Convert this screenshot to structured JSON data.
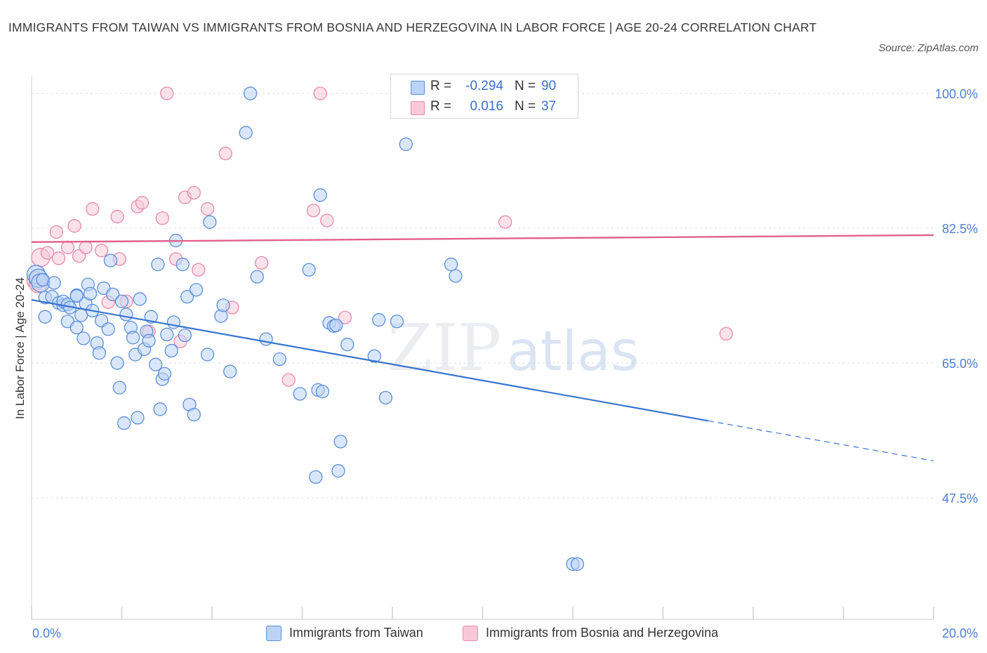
{
  "title": "IMMIGRANTS FROM TAIWAN VS IMMIGRANTS FROM BOSNIA AND HERZEGOVINA IN LABOR FORCE | AGE 20-24 CORRELATION CHART",
  "source": "Source: ZipAtlas.com",
  "watermark": {
    "part1": "ZIP",
    "part2": "atlas"
  },
  "colors": {
    "taiwan_fill": "#bcd3f5",
    "taiwan_stroke": "#5b8fd9",
    "taiwan_line": "#3674d0",
    "bosnia_fill": "#f8c9d8",
    "bosnia_stroke": "#e88aa8",
    "bosnia_line": "#e0628c",
    "tick_text": "#4a7fd4",
    "grid": "#dddddd"
  },
  "legend_top": [
    {
      "r_label": "R =",
      "r_value": "-0.294",
      "n_label": "N =",
      "n_value": "90"
    },
    {
      "r_label": "R =",
      "r_value": "0.016",
      "n_label": "N =",
      "n_value": "37"
    }
  ],
  "legend_bottom": [
    {
      "label": "Immigrants from Taiwan"
    },
    {
      "label": "Immigrants from Bosnia and Herzegovina"
    }
  ],
  "chart_data": {
    "type": "scatter",
    "ylabel": "In Labor Force | Age 20-24",
    "xlim": [
      0,
      20
    ],
    "ylim": [
      30,
      100
    ],
    "x_tick_labels": [
      "0.0%",
      "20.0%"
    ],
    "y_ticks": [
      47.5,
      65.0,
      82.5,
      100.0
    ],
    "y_tick_labels": [
      "47.5%",
      "65.0%",
      "82.5%",
      "100.0%"
    ],
    "grid": true,
    "series": [
      {
        "name": "Immigrants from Taiwan",
        "trend": {
          "x0": 0.0,
          "y0": 73.2,
          "x1": 15.0,
          "y1": 57.5,
          "dash_to_x": 20.0,
          "dash_to_y": 52.3
        },
        "points": [
          [
            0.1,
            76.5
          ],
          [
            0.15,
            76.0
          ],
          [
            0.2,
            75.4
          ],
          [
            0.25,
            75.8
          ],
          [
            0.3,
            73.5
          ],
          [
            0.3,
            71.0
          ],
          [
            0.45,
            73.6
          ],
          [
            0.5,
            75.4
          ],
          [
            0.6,
            72.8
          ],
          [
            0.7,
            72.5
          ],
          [
            0.7,
            73.0
          ],
          [
            0.8,
            72.6
          ],
          [
            0.8,
            70.4
          ],
          [
            0.85,
            72.2
          ],
          [
            1.0,
            73.8
          ],
          [
            1.0,
            73.7
          ],
          [
            1.0,
            69.6
          ],
          [
            1.1,
            71.2
          ],
          [
            1.15,
            68.2
          ],
          [
            1.2,
            72.7
          ],
          [
            1.25,
            75.2
          ],
          [
            1.3,
            74.0
          ],
          [
            1.35,
            71.8
          ],
          [
            1.45,
            67.6
          ],
          [
            1.5,
            66.3
          ],
          [
            1.55,
            70.5
          ],
          [
            1.6,
            74.7
          ],
          [
            1.7,
            69.4
          ],
          [
            1.75,
            78.3
          ],
          [
            1.8,
            73.9
          ],
          [
            1.9,
            65.0
          ],
          [
            1.95,
            61.8
          ],
          [
            2.0,
            73.0
          ],
          [
            2.05,
            57.2
          ],
          [
            2.1,
            71.3
          ],
          [
            2.2,
            69.6
          ],
          [
            2.25,
            68.3
          ],
          [
            2.3,
            66.1
          ],
          [
            2.35,
            57.9
          ],
          [
            2.4,
            73.3
          ],
          [
            2.5,
            66.8
          ],
          [
            2.55,
            69.1
          ],
          [
            2.6,
            67.9
          ],
          [
            2.65,
            71.0
          ],
          [
            2.75,
            64.8
          ],
          [
            2.8,
            77.8
          ],
          [
            2.85,
            59.0
          ],
          [
            2.9,
            62.9
          ],
          [
            2.95,
            63.6
          ],
          [
            3.0,
            68.7
          ],
          [
            3.1,
            66.6
          ],
          [
            3.15,
            70.3
          ],
          [
            3.2,
            80.9
          ],
          [
            3.35,
            77.8
          ],
          [
            3.4,
            68.6
          ],
          [
            3.45,
            73.6
          ],
          [
            3.5,
            59.6
          ],
          [
            3.6,
            58.3
          ],
          [
            3.65,
            74.5
          ],
          [
            3.9,
            66.1
          ],
          [
            3.95,
            83.3
          ],
          [
            4.2,
            71.1
          ],
          [
            4.25,
            72.5
          ],
          [
            4.4,
            63.9
          ],
          [
            4.75,
            94.9
          ],
          [
            4.85,
            100.0
          ],
          [
            5.0,
            76.2
          ],
          [
            5.2,
            68.1
          ],
          [
            5.5,
            65.5
          ],
          [
            5.95,
            61.0
          ],
          [
            6.15,
            77.1
          ],
          [
            6.3,
            50.2
          ],
          [
            6.35,
            61.5
          ],
          [
            6.4,
            86.8
          ],
          [
            6.45,
            61.3
          ],
          [
            6.6,
            70.2
          ],
          [
            6.7,
            69.8
          ],
          [
            6.75,
            69.9
          ],
          [
            6.8,
            51.0
          ],
          [
            6.85,
            54.8
          ],
          [
            7.0,
            67.4
          ],
          [
            7.6,
            65.9
          ],
          [
            7.7,
            70.6
          ],
          [
            7.85,
            60.5
          ],
          [
            8.1,
            70.4
          ],
          [
            8.3,
            93.4
          ],
          [
            9.3,
            77.8
          ],
          [
            9.4,
            76.3
          ],
          [
            12.0,
            38.9
          ],
          [
            12.1,
            38.9
          ]
        ]
      },
      {
        "name": "Immigrants from Bosnia and Herzegovina",
        "trend": {
          "x0": 0.0,
          "y0": 80.7,
          "x1": 20.0,
          "y1": 81.6
        },
        "points": [
          [
            0.1,
            75.7
          ],
          [
            0.15,
            75.3
          ],
          [
            0.2,
            78.7
          ],
          [
            0.35,
            79.3
          ],
          [
            0.55,
            82.0
          ],
          [
            0.6,
            78.6
          ],
          [
            0.8,
            80.0
          ],
          [
            0.95,
            82.8
          ],
          [
            1.05,
            78.9
          ],
          [
            1.2,
            80.0
          ],
          [
            1.35,
            85.0
          ],
          [
            1.55,
            79.6
          ],
          [
            1.7,
            72.9
          ],
          [
            1.9,
            84.0
          ],
          [
            1.95,
            78.5
          ],
          [
            2.1,
            73.0
          ],
          [
            2.35,
            85.3
          ],
          [
            2.45,
            85.8
          ],
          [
            2.6,
            69.1
          ],
          [
            2.9,
            83.8
          ],
          [
            3.0,
            100.0
          ],
          [
            3.2,
            78.5
          ],
          [
            3.3,
            67.8
          ],
          [
            3.4,
            86.5
          ],
          [
            3.6,
            87.1
          ],
          [
            3.7,
            77.1
          ],
          [
            3.9,
            85.0
          ],
          [
            4.3,
            92.2
          ],
          [
            4.45,
            72.2
          ],
          [
            5.1,
            78.0
          ],
          [
            5.7,
            62.8
          ],
          [
            6.25,
            84.8
          ],
          [
            6.4,
            100.0
          ],
          [
            6.55,
            83.5
          ],
          [
            6.95,
            70.9
          ],
          [
            10.5,
            83.3
          ],
          [
            15.4,
            68.8
          ]
        ]
      }
    ]
  }
}
